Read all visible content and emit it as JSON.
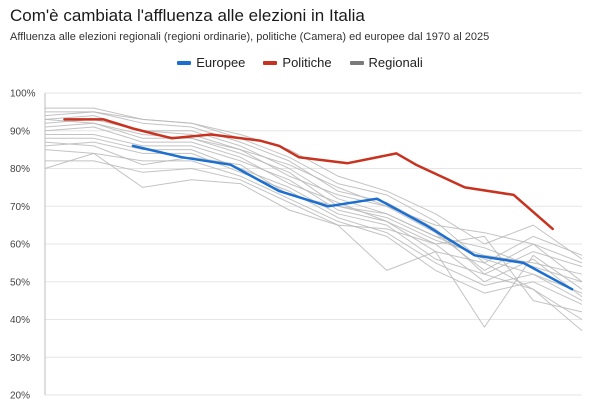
{
  "title": "Com'è cambiata l'affluenza alle elezioni in Italia",
  "subtitle": "Affluenza alle elezioni regionali (regioni ordinarie), politiche (Camera) ed europee dal 1970 al 2025",
  "legend": {
    "europee": "Europee",
    "politiche": "Politiche",
    "regionali": "Regionali"
  },
  "colors": {
    "europee": "#1a6fd1",
    "politiche": "#c8321f",
    "regionali": "#b8b8b8",
    "regionali_legend": "#7a7a7a"
  },
  "chart_data": {
    "type": "line",
    "title": "Com'è cambiata l'affluenza alle elezioni in Italia",
    "xlabel": "",
    "ylabel": "",
    "xlim": [
      1970,
      2025
    ],
    "ylim": [
      20,
      100
    ],
    "yticks": [
      20,
      30,
      40,
      50,
      60,
      70,
      80,
      90,
      100
    ],
    "ytick_labels": [
      "20%",
      "30%",
      "40%",
      "50%",
      "60%",
      "70%",
      "80%",
      "90%",
      "100%"
    ],
    "series": [
      {
        "name": "Politiche",
        "color": "#c8321f",
        "x": [
          1972,
          1976,
          1979,
          1983,
          1987,
          1992,
          1994,
          1996,
          2001,
          2006,
          2008,
          2013,
          2018,
          2022
        ],
        "y": [
          93,
          93,
          90.6,
          88,
          89,
          87.4,
          86,
          83,
          81.4,
          84,
          81,
          75,
          73,
          64
        ]
      },
      {
        "name": "Europee",
        "color": "#1a6fd1",
        "x": [
          1979,
          1984,
          1989,
          1994,
          1999,
          2004,
          2009,
          2014,
          2019,
          2024
        ],
        "y": [
          86,
          83,
          81,
          74,
          70,
          72,
          65,
          57,
          55,
          48
        ]
      },
      {
        "name": "Regionali",
        "color": "#b8b8b8",
        "lines": [
          {
            "x": [
              1970,
              1975,
              1980,
              1985,
              1990,
              1995,
              2000,
              2005,
              2010,
              2015,
              2020,
              2025
            ],
            "y": [
              96,
              96,
              93,
              92,
              88,
              83,
              76,
              73,
              66,
              55,
              62,
              57
            ]
          },
          {
            "x": [
              1970,
              1975,
              1980,
              1985,
              1990,
              1995,
              2000,
              2005,
              2010,
              2015,
              2020,
              2025
            ],
            "y": [
              95,
              95,
              92,
              91,
              87,
              82,
              74,
              71,
              64,
              52,
              58,
              54
            ]
          },
          {
            "x": [
              1970,
              1975,
              1980,
              1985,
              1990,
              1995,
              2000,
              2005,
              2010,
              2015,
              2020,
              2025
            ],
            "y": [
              94,
              95,
              93,
              92,
              89,
              85,
              78,
              74,
              68,
              60,
              65,
              56
            ]
          },
          {
            "x": [
              1970,
              1975,
              1980,
              1985,
              1990,
              1995,
              2000,
              2005,
              2010,
              2015,
              2020,
              2025
            ],
            "y": [
              93,
              94,
              90,
              90,
              86,
              80,
              72,
              68,
              62,
              56,
              52,
              47
            ]
          },
          {
            "x": [
              1970,
              1975,
              1980,
              1985,
              1990,
              1995,
              2000,
              2005,
              2010,
              2015,
              2020,
              2025
            ],
            "y": [
              92,
              93,
              90,
              89,
              85,
              78,
              73,
              70,
              63,
              53,
              60,
              50
            ]
          },
          {
            "x": [
              1970,
              1975,
              1980,
              1985,
              1990,
              1995,
              2000,
              2005,
              2010,
              2015,
              2020,
              2025
            ],
            "y": [
              91,
              92,
              88,
              88,
              84,
              79,
              70,
              67,
              61,
              57,
              55,
              52
            ]
          },
          {
            "x": [
              1970,
              1975,
              1980,
              1985,
              1990,
              1995,
              2000,
              2005,
              2010,
              2015,
              2020,
              2025
            ],
            "y": [
              90,
              91,
              87,
              87,
              83,
              76,
              71,
              66,
              60,
              50,
              56,
              46
            ]
          },
          {
            "x": [
              1970,
              1975,
              1980,
              1985,
              1990,
              1995,
              2000,
              2005,
              2010,
              2015,
              2020,
              2025
            ],
            "y": [
              89,
              89,
              86,
              86,
              82,
              77,
              69,
              66,
              58,
              38,
              57,
              48
            ]
          },
          {
            "x": [
              1970,
              1975,
              1980,
              1985,
              1990,
              1995,
              2000,
              2005,
              2010,
              2015,
              2020,
              2025
            ],
            "y": [
              88,
              88,
              85,
              85,
              80,
              75,
              68,
              65,
              56,
              52,
              48,
              37
            ]
          },
          {
            "x": [
              1970,
              1975,
              1980,
              1985,
              1990,
              1995,
              2000,
              2005,
              2010,
              2015,
              2020,
              2025
            ],
            "y": [
              86,
              87,
              84,
              84,
              79,
              74,
              67,
              63,
              55,
              49,
              52,
              45
            ]
          },
          {
            "x": [
              1970,
              1975,
              1980,
              1985,
              1990,
              1995,
              2000,
              2005,
              2010,
              2015,
              2020,
              2025
            ],
            "y": [
              85,
              84,
              82,
              82,
              78,
              72,
              66,
              62,
              53,
              47,
              50,
              44
            ]
          },
          {
            "x": [
              1970,
              1975,
              1980,
              1985,
              1990,
              1995,
              2000,
              2005,
              2010,
              2015,
              2020,
              2025
            ],
            "y": [
              82,
              82,
              79,
              80,
              77,
              71,
              65,
              53,
              58,
              55,
              48,
              40
            ]
          },
          {
            "x": [
              1970,
              1975,
              1980,
              1985,
              1990,
              1995,
              2000,
              2005,
              2010,
              2015,
              2020,
              2025
            ],
            "y": [
              80,
              84,
              75,
              77,
              76,
              69,
              65,
              64,
              60,
              62,
              45,
              42
            ]
          },
          {
            "x": [
              1970,
              1975,
              1980,
              1985,
              1990,
              1995,
              2000,
              2005,
              2010,
              2015,
              2020,
              2025
            ],
            "y": [
              87,
              86,
              81,
              83,
              81,
              73,
              70,
              68,
              62,
              59,
              54,
              50
            ]
          },
          {
            "x": [
              1970,
              1975,
              1980,
              1985,
              1990,
              1995,
              2000,
              2005,
              2010,
              2015,
              2020,
              2025
            ],
            "y": [
              93,
              92,
              89,
              88,
              85,
              81,
              75,
              70,
              65,
              63,
              60,
              55
            ]
          }
        ]
      }
    ]
  }
}
